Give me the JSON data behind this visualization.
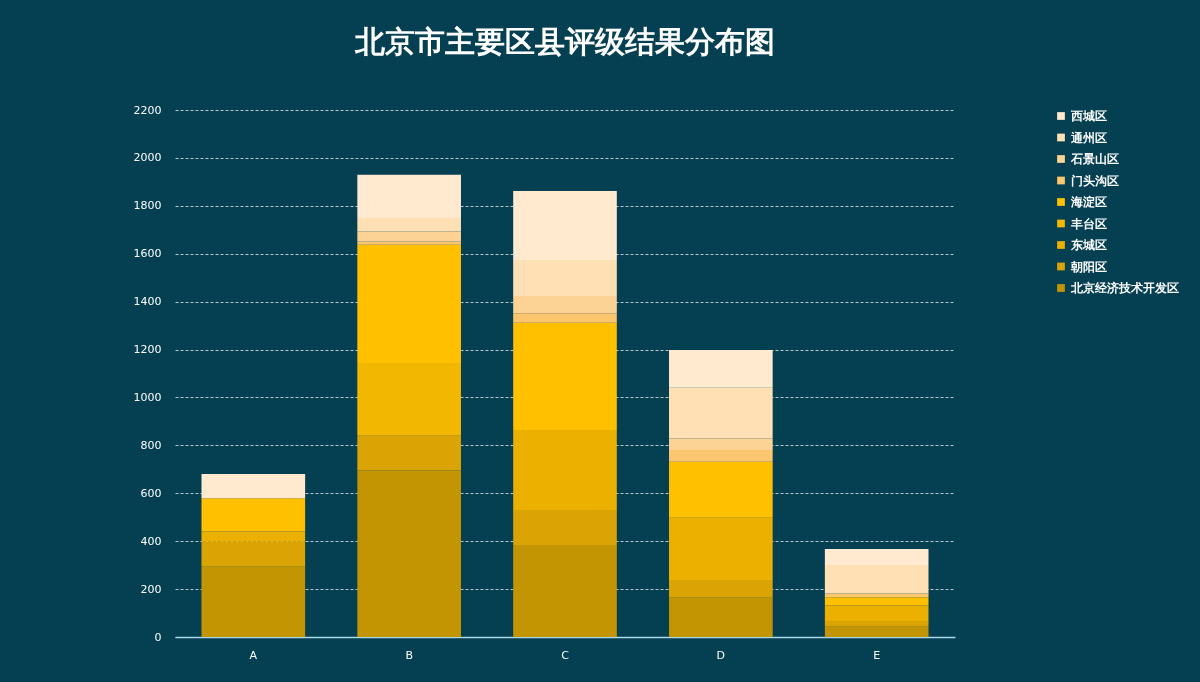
{
  "chart_data": {
    "type": "bar",
    "title": "北京市主要区县评级结果分布图",
    "categories": [
      "A",
      "B",
      "C",
      "D",
      "E"
    ],
    "stacked": true,
    "series": [
      {
        "name": "北京经济技术开发区",
        "color": "#c49502",
        "values": [
          293,
          695,
          384,
          164,
          43
        ]
      },
      {
        "name": "朝阳区",
        "color": "#daa504",
        "values": [
          105,
          145,
          146,
          74,
          24
        ]
      },
      {
        "name": "东城区",
        "color": "#ebb000",
        "values": [
          42,
          0,
          334,
          260,
          64
        ]
      },
      {
        "name": "丰台区",
        "color": "#f2b700",
        "values": [
          0,
          304,
          0,
          0,
          0
        ]
      },
      {
        "name": "海淀区",
        "color": "#ffc000",
        "values": [
          139,
          493,
          448,
          234,
          35
        ]
      },
      {
        "name": "门头沟区",
        "color": "#fcc66e",
        "values": [
          0,
          14,
          39,
          49,
          16
        ]
      },
      {
        "name": "石景山区",
        "color": "#fdd395",
        "values": [
          0,
          42,
          73,
          48,
          0
        ]
      },
      {
        "name": "通州区",
        "color": "#fee0b4",
        "values": [
          0,
          56,
          150,
          212,
          119
        ]
      },
      {
        "name": "西城区",
        "color": "#ffe9cf",
        "values": [
          101,
          181,
          288,
          157,
          66
        ]
      }
    ],
    "ylim": [
      0,
      2200
    ],
    "yticks": [
      0,
      200,
      400,
      600,
      800,
      1000,
      1200,
      1400,
      1600,
      1800,
      2000,
      2200
    ],
    "grid": true,
    "legend": "right"
  }
}
